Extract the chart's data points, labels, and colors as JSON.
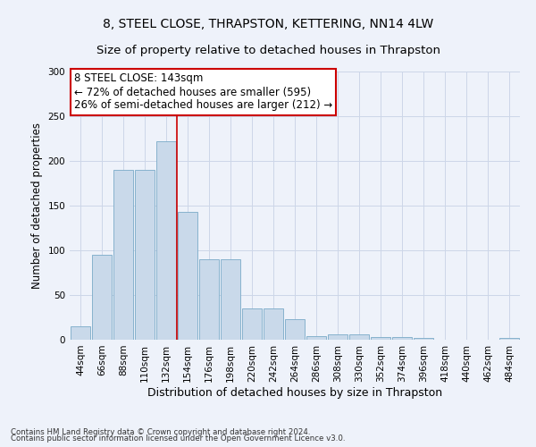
{
  "title": "8, STEEL CLOSE, THRAPSTON, KETTERING, NN14 4LW",
  "subtitle": "Size of property relative to detached houses in Thrapston",
  "xlabel": "Distribution of detached houses by size in Thrapston",
  "ylabel": "Number of detached properties",
  "bar_labels": [
    "44sqm",
    "66sqm",
    "88sqm",
    "110sqm",
    "132sqm",
    "154sqm",
    "176sqm",
    "198sqm",
    "220sqm",
    "242sqm",
    "264sqm",
    "286sqm",
    "308sqm",
    "330sqm",
    "352sqm",
    "374sqm",
    "396sqm",
    "418sqm",
    "440sqm",
    "462sqm",
    "484sqm"
  ],
  "bar_values": [
    15,
    95,
    190,
    190,
    222,
    143,
    90,
    90,
    35,
    35,
    23,
    4,
    6,
    6,
    3,
    3,
    2,
    0,
    0,
    0,
    2
  ],
  "bar_color": "#c9d9ea",
  "bar_edge_color": "#7aaac8",
  "property_line_bin": 4.5,
  "annotation_text": "8 STEEL CLOSE: 143sqm\n← 72% of detached houses are smaller (595)\n26% of semi-detached houses are larger (212) →",
  "annotation_box_color": "#ffffff",
  "annotation_box_edge": "#cc0000",
  "vline_color": "#cc0000",
  "grid_color": "#ccd6e8",
  "ylim": [
    0,
    300
  ],
  "footnote1": "Contains HM Land Registry data © Crown copyright and database right 2024.",
  "footnote2": "Contains public sector information licensed under the Open Government Licence v3.0.",
  "bg_color": "#eef2fa",
  "title_fontsize": 10,
  "subtitle_fontsize": 9.5,
  "annotation_fontsize": 8.5,
  "xlabel_fontsize": 9,
  "ylabel_fontsize": 8.5,
  "tick_fontsize": 7.5
}
